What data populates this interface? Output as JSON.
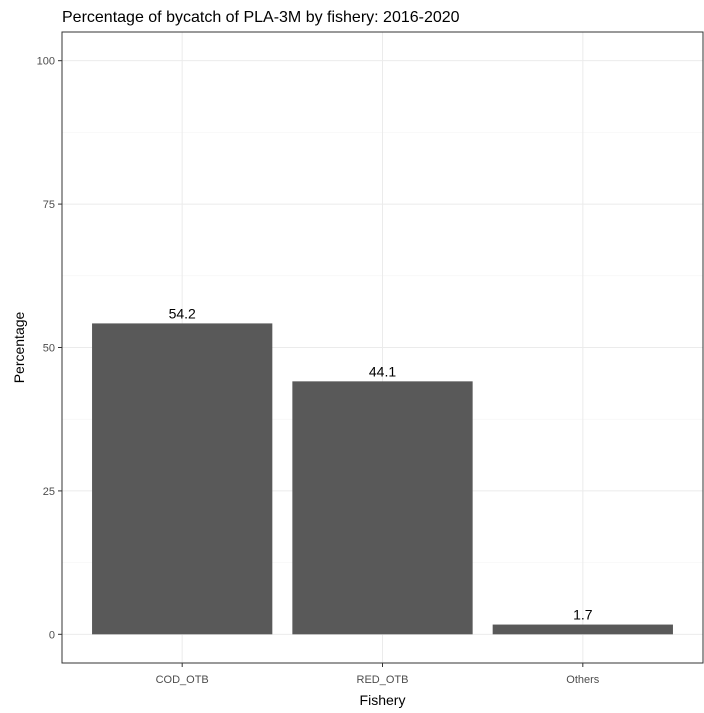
{
  "chart_data": {
    "type": "bar",
    "title": "Percentage of bycatch of PLA-3M by fishery: 2016-2020",
    "xlabel": "Fishery",
    "ylabel": "Percentage",
    "categories": [
      "COD_OTB",
      "RED_OTB",
      "Others"
    ],
    "values": [
      54.2,
      44.1,
      1.7
    ],
    "data_labels": [
      "54.2",
      "44.1",
      "1.7"
    ],
    "ylim": [
      0,
      100
    ],
    "yticks": [
      0,
      25,
      50,
      75,
      100
    ],
    "grid": true,
    "bar_color": "#595959",
    "grid_color": "#ebebeb",
    "legend": "none"
  }
}
